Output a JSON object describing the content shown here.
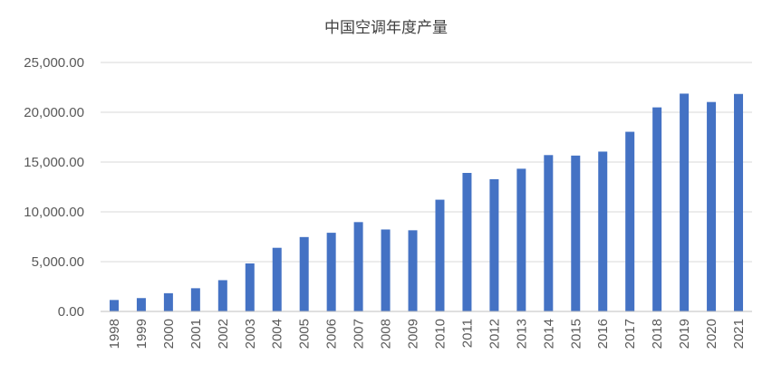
{
  "chart_data": {
    "type": "bar",
    "title": "中国空调年度产量",
    "xlabel": "",
    "ylabel": "",
    "categories": [
      "1998",
      "1999",
      "2000",
      "2001",
      "2002",
      "2003",
      "2004",
      "2005",
      "2006",
      "2007",
      "2008",
      "2009",
      "2010",
      "2011",
      "2012",
      "2013",
      "2014",
      "2015",
      "2016",
      "2017",
      "2018",
      "2019",
      "2020",
      "2021"
    ],
    "values": [
      1150,
      1340,
      1830,
      2330,
      3140,
      4820,
      6390,
      7470,
      7900,
      8970,
      8230,
      8150,
      11220,
      13910,
      13280,
      14330,
      15700,
      15650,
      16050,
      18040,
      20490,
      21870,
      21030,
      21840
    ],
    "ylim": [
      0,
      25000
    ],
    "yticks": [
      "0.00",
      "5,000.00",
      "10,000.00",
      "15,000.00",
      "20,000.00",
      "25,000.00"
    ],
    "bar_color": "#4472c4",
    "grid": true,
    "legend": "none"
  }
}
